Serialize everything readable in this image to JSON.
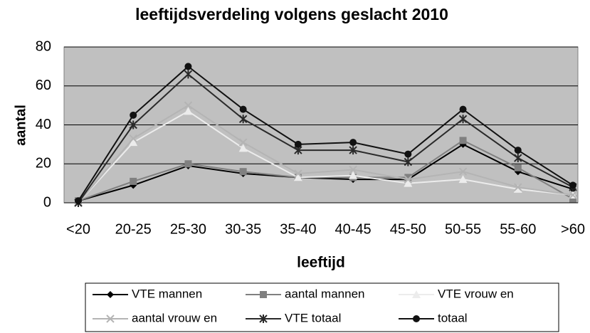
{
  "chart_data": {
    "type": "line",
    "title": "leeftijdsverdeling volgens geslacht 2010",
    "x_label": "leeftijd",
    "y_label": "aantal",
    "categories": [
      "<20",
      "20-25",
      "25-30",
      "30-35",
      "35-40",
      "40-45",
      "45-50",
      "50-55",
      "55-60",
      ">60"
    ],
    "ylim": [
      0,
      80
    ],
    "yticks": [
      0,
      20,
      40,
      60,
      80
    ],
    "grid": true,
    "series": [
      {
        "name": "VTE mannen",
        "color": "#000000",
        "marker": "diamond",
        "values": [
          1,
          9,
          19,
          15,
          13,
          12,
          12,
          30,
          16,
          7
        ]
      },
      {
        "name": "aantal mannen",
        "color": "#808080",
        "marker": "square",
        "values": [
          1,
          11,
          20,
          16,
          13,
          13,
          13,
          32,
          18,
          2
        ]
      },
      {
        "name": "VTE vrouw en",
        "color": "#ececec",
        "marker": "triangle",
        "values": [
          0,
          31,
          47,
          28,
          13,
          14,
          10,
          12,
          7,
          4
        ]
      },
      {
        "name": "aantal vrouw en",
        "color": "#b4b4b4",
        "marker": "x",
        "values": [
          0,
          33,
          50,
          31,
          15,
          17,
          12,
          16,
          8,
          4
        ]
      },
      {
        "name": "VTE totaal",
        "color": "#2a2a2a",
        "marker": "star",
        "values": [
          0,
          40,
          66,
          43,
          27,
          27,
          21,
          43,
          23,
          8
        ]
      },
      {
        "name": "totaal",
        "color": "#111111",
        "marker": "circle",
        "values": [
          1,
          45,
          70,
          48,
          30,
          31,
          25,
          48,
          27,
          9
        ]
      }
    ]
  }
}
